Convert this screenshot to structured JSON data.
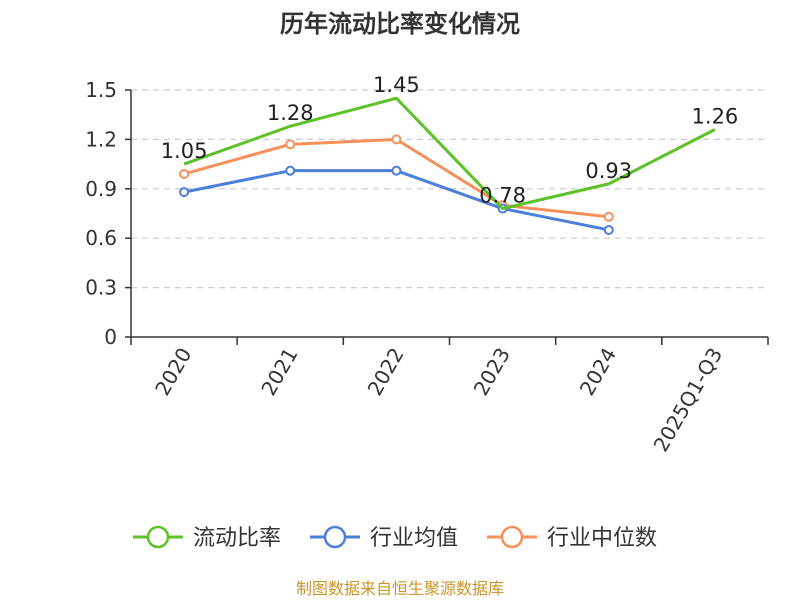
{
  "chart_data": {
    "type": "line",
    "title": "历年流动比率变化情况",
    "categories": [
      "2020",
      "2021",
      "2022",
      "2023",
      "2024",
      "2025Q1-Q3"
    ],
    "ylim": [
      0,
      1.5
    ],
    "yticks": [
      "0",
      "0.3",
      "0.6",
      "0.9",
      "1.2",
      "1.5"
    ],
    "grid": true,
    "legend_position": "bottom",
    "series": [
      {
        "name": "流动比率",
        "color": "#5cc227",
        "values": [
          1.05,
          1.28,
          1.45,
          0.78,
          0.93,
          1.26
        ],
        "labels": [
          "1.05",
          "1.28",
          "1.45",
          "0.78",
          "0.93",
          "1.26"
        ],
        "show_markers": false
      },
      {
        "name": "行业均值",
        "color": "#4a7fdb",
        "values": [
          0.88,
          1.01,
          1.01,
          0.78,
          0.65,
          null
        ],
        "show_markers": true
      },
      {
        "name": "行业中位数",
        "color": "#f5905a",
        "values": [
          0.99,
          1.17,
          1.2,
          0.8,
          0.73,
          null
        ],
        "show_markers": true
      }
    ]
  },
  "footer": {
    "source": "制图数据来自恒生聚源数据库"
  }
}
